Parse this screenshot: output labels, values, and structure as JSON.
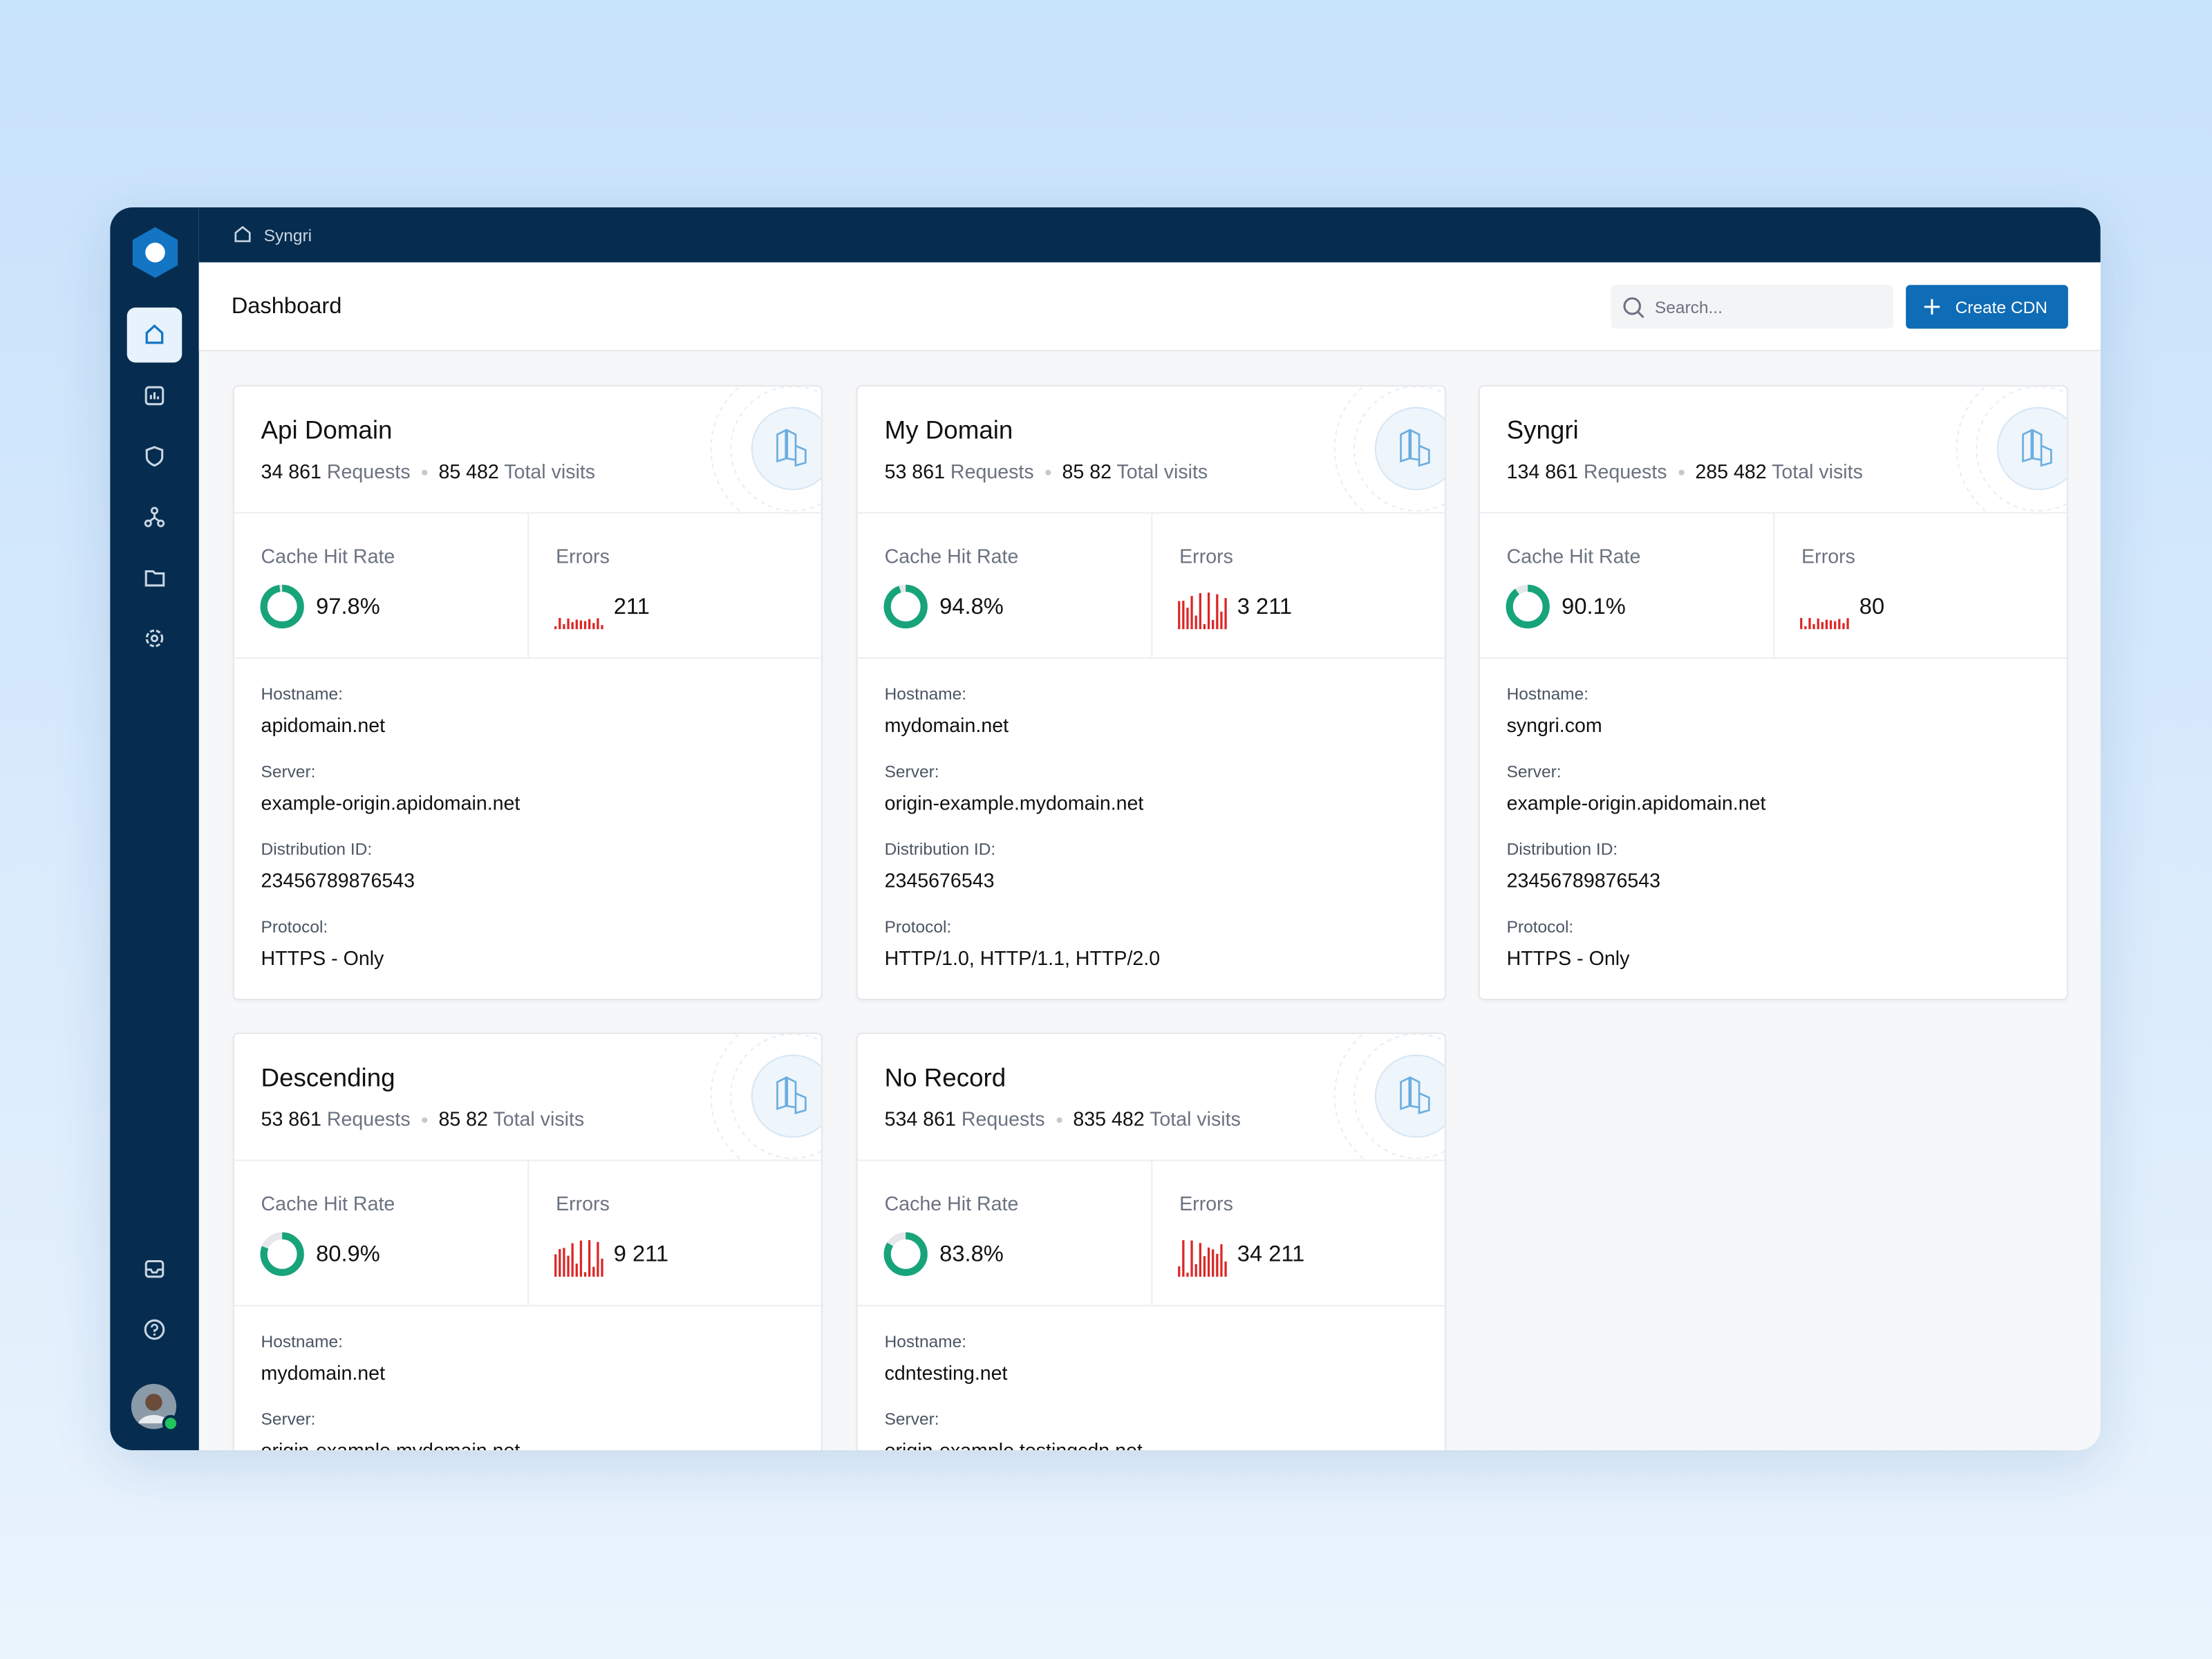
{
  "header": {
    "breadcrumb": "Syngri",
    "page_title": "Dashboard",
    "search_placeholder": "Search...",
    "create_button": "Create CDN"
  },
  "labels": {
    "requests": "Requests",
    "visits": "Total visits",
    "cache": "Cache Hit Rate",
    "errors": "Errors"
  },
  "cards": [
    {
      "title": "Api Domain",
      "requests": "34 861",
      "visits": "85 482",
      "cache_hit_rate": {
        "value": 97.8,
        "label": "97.8%"
      },
      "errors": "211",
      "fields": [
        {
          "label": "Hostname:",
          "value": "apidomain.net"
        },
        {
          "label": "Server:",
          "value": "example-origin.apidomain.net"
        },
        {
          "label": "Distribution ID:",
          "value": "23456789876543"
        },
        {
          "label": "Protocol:",
          "value": "HTTPS - Only"
        }
      ]
    },
    {
      "title": "My Domain",
      "requests": "53 861",
      "visits": "85 82",
      "cache_hit_rate": {
        "value": 94.8,
        "label": "94.8%"
      },
      "errors": "3 211",
      "fields": [
        {
          "label": "Hostname:",
          "value": "mydomain.net"
        },
        {
          "label": "Server:",
          "value": "origin-example.mydomain.net"
        },
        {
          "label": "Distribution ID:",
          "value": "2345676543"
        },
        {
          "label": "Protocol:",
          "value": "HTTP/1.0, HTTP/1.1, HTTP/2.0"
        }
      ]
    },
    {
      "title": "Syngri",
      "requests": "134 861",
      "visits": "285 482",
      "cache_hit_rate": {
        "value": 90.1,
        "label": "90.1%"
      },
      "errors": "80",
      "fields": [
        {
          "label": "Hostname:",
          "value": "syngri.com"
        },
        {
          "label": "Server:",
          "value": "example-origin.apidomain.net"
        },
        {
          "label": "Distribution ID:",
          "value": "23456789876543"
        },
        {
          "label": "Protocol:",
          "value": "HTTPS - Only"
        }
      ]
    },
    {
      "title": "Descending",
      "requests": "53 861",
      "visits": "85 82",
      "cache_hit_rate": {
        "value": 80.9,
        "label": "80.9%"
      },
      "errors": "9 211",
      "fields": [
        {
          "label": "Hostname:",
          "value": "mydomain.net"
        },
        {
          "label": "Server:",
          "value": "origin-example.mydomain.net"
        }
      ]
    },
    {
      "title": "No Record",
      "requests": "534 861",
      "visits": "835 482",
      "cache_hit_rate": {
        "value": 83.8,
        "label": "83.8%"
      },
      "errors": "34 211",
      "fields": [
        {
          "label": "Hostname:",
          "value": "cdntesting.net"
        },
        {
          "label": "Server:",
          "value": "origin-example.testingcdn.net"
        }
      ]
    }
  ]
}
